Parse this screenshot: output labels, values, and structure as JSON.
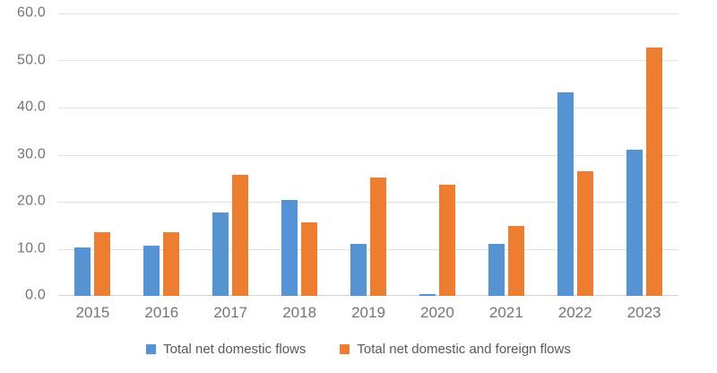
{
  "chart_data": {
    "type": "bar",
    "title": "",
    "categories": [
      "2015",
      "2016",
      "2017",
      "2018",
      "2019",
      "2020",
      "2021",
      "2022",
      "2023"
    ],
    "series": [
      {
        "name": "Total net domestic flows",
        "color": "#5593D2",
        "values": [
          10.3,
          10.7,
          17.7,
          20.4,
          11.0,
          0.3,
          11.0,
          43.2,
          31.1
        ]
      },
      {
        "name": "Total net domestic and foreign flows",
        "color": "#ED7D31",
        "values": [
          13.5,
          13.5,
          25.7,
          15.7,
          25.1,
          23.7,
          14.8,
          26.4,
          52.7
        ]
      }
    ],
    "xlabel": "",
    "ylabel": "",
    "ylim": [
      0,
      60
    ],
    "ytick_step": 10,
    "ytick_labels": [
      "60.0",
      "50.0",
      "40.0",
      "30.0",
      "20.0",
      "10.0",
      "0.0"
    ],
    "grid": true,
    "legend_position": "bottom",
    "colors": {
      "gridline": "#e0e0e0",
      "baseline": "#d4d4d4",
      "tick_text": "#757575",
      "legend_text": "#595959",
      "background": "#ffffff"
    }
  }
}
